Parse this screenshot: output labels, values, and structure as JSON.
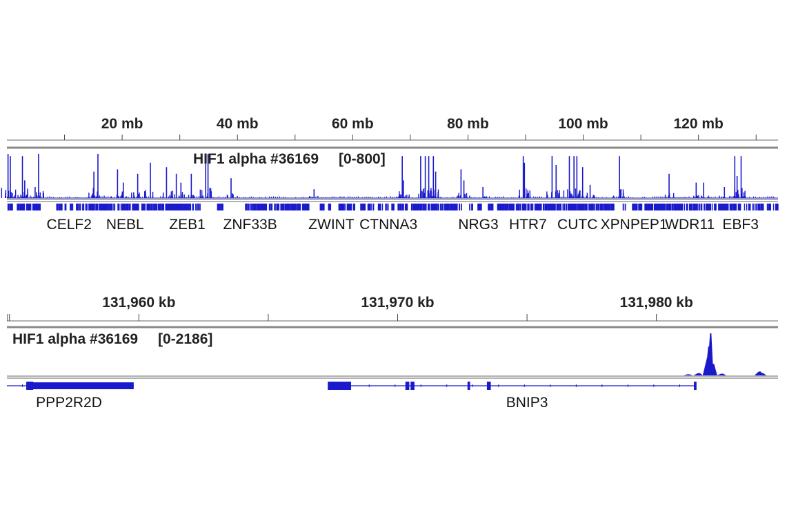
{
  "chart_data": [
    {
      "type": "bar",
      "track_name": "HIF1 alpha #36169",
      "data_range_label": "[0-800]",
      "ylim": [
        0,
        800
      ],
      "xlim_mb": [
        0,
        133.8
      ],
      "x_unit": "mb",
      "tick_labels": [
        "20 mb",
        "40 mb",
        "60 mb",
        "80 mb",
        "100 mb",
        "120 mb"
      ],
      "tick_values": [
        20,
        40,
        60,
        80,
        100,
        120
      ],
      "minor_ticks": [
        10,
        30,
        50,
        70,
        90,
        110,
        130
      ],
      "color": "#1a1acc",
      "peaks": [
        [
          0.1,
          800
        ],
        [
          0.5,
          760
        ],
        [
          2.6,
          760
        ],
        [
          3.0,
          320
        ],
        [
          4.8,
          200
        ],
        [
          5.4,
          800
        ],
        [
          15.0,
          480
        ],
        [
          15.7,
          800
        ],
        [
          19.1,
          520
        ],
        [
          20.1,
          280
        ],
        [
          22.6,
          440
        ],
        [
          24.8,
          640
        ],
        [
          27.6,
          560
        ],
        [
          29.3,
          440
        ],
        [
          30.1,
          280
        ],
        [
          31.9,
          440
        ],
        [
          34.4,
          800
        ],
        [
          34.8,
          800
        ],
        [
          38.8,
          360
        ],
        [
          53.2,
          160
        ],
        [
          68.5,
          760
        ],
        [
          68.7,
          320
        ],
        [
          71.7,
          760
        ],
        [
          72.5,
          760
        ],
        [
          73.1,
          760
        ],
        [
          73.9,
          760
        ],
        [
          74.3,
          480
        ],
        [
          78.7,
          520
        ],
        [
          79.2,
          320
        ],
        [
          82.5,
          200
        ],
        [
          89.5,
          760
        ],
        [
          89.7,
          640
        ],
        [
          94.5,
          760
        ],
        [
          95.2,
          600
        ],
        [
          97.5,
          760
        ],
        [
          98.3,
          760
        ],
        [
          98.8,
          760
        ],
        [
          99.8,
          560
        ],
        [
          101.1,
          240
        ],
        [
          106.2,
          760
        ],
        [
          114.8,
          440
        ],
        [
          119.5,
          280
        ],
        [
          120.8,
          280
        ],
        [
          124.4,
          200
        ],
        [
          126.2,
          760
        ],
        [
          126.6,
          400
        ],
        [
          127.3,
          760
        ]
      ],
      "genes": [
        "CELF2",
        "NEBL",
        "ZEB1",
        "ZNF33B",
        "ZWINT",
        "CTNNA3",
        "NRG3",
        "HTR7",
        "CUTC",
        "XPNPEP1",
        "WDR11",
        "EBF3"
      ],
      "gene_label_mb": [
        10.8,
        20.5,
        31.3,
        42.2,
        56.3,
        66.2,
        81.8,
        90.4,
        99.0,
        108.8,
        118.5,
        127.3
      ]
    },
    {
      "type": "area",
      "track_name": "HIF1 alpha #36169",
      "data_range_label": "[0-2186]",
      "ylim": [
        0,
        2186
      ],
      "xlim_kb": [
        131954.9,
        131984.7
      ],
      "x_unit": "kb",
      "tick_labels": [
        "131,960 kb",
        "131,970 kb",
        "131,980 kb"
      ],
      "tick_values": [
        131960,
        131970,
        131980
      ],
      "minor_ticks": [
        131955,
        131965,
        131975
      ],
      "color": "#1a1acc",
      "peaks": [
        [
          131982.07,
          2186
        ],
        [
          131982.0,
          1500
        ],
        [
          131981.95,
          900
        ],
        [
          131982.15,
          600
        ],
        [
          131981.6,
          120
        ],
        [
          131982.5,
          90
        ],
        [
          131981.2,
          60
        ],
        [
          131983.95,
          200
        ],
        [
          131984.05,
          120
        ]
      ],
      "genes": [
        {
          "name": "PPP2R2D",
          "start_kb": 131954.9,
          "end_kb": 131959.8,
          "thick_start_kb": 131955.65,
          "thick_end_kb": 131959.8,
          "label_kb": 131957.3
        },
        {
          "name": "BNIP3",
          "start_kb": 131967.3,
          "end_kb": 131981.5,
          "exons_kb": [
            [
              131967.3,
              131968.2
            ],
            [
              131970.3,
              131970.45
            ],
            [
              131970.5,
              131970.65
            ],
            [
              131972.7,
              131972.8
            ],
            [
              131973.45,
              131973.6
            ],
            [
              131981.45,
              131981.55
            ]
          ],
          "label_kb": 131975.0
        }
      ]
    }
  ]
}
